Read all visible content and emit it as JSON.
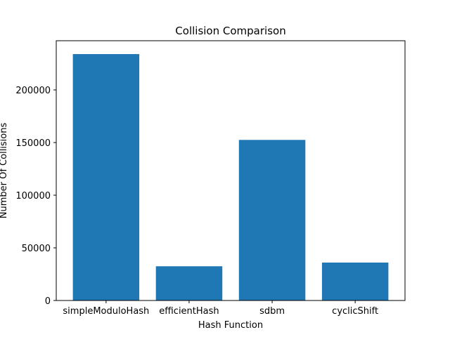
{
  "chart_data": {
    "type": "bar",
    "title": "Collision Comparison",
    "xlabel": "Hash Function",
    "ylabel": "Number Of Collisions",
    "categories": [
      "simpleModuloHash",
      "efficientHash",
      "sdbm",
      "cyclicShift"
    ],
    "values": [
      234000,
      32500,
      152500,
      36000
    ],
    "ylim": [
      0,
      246700
    ],
    "yticks": [
      0,
      50000,
      100000,
      150000,
      200000
    ],
    "ytick_labels": [
      "0",
      "50000",
      "100000",
      "150000",
      "200000"
    ],
    "bar_color": "#1f77b4",
    "grid": false,
    "legend": "none"
  }
}
